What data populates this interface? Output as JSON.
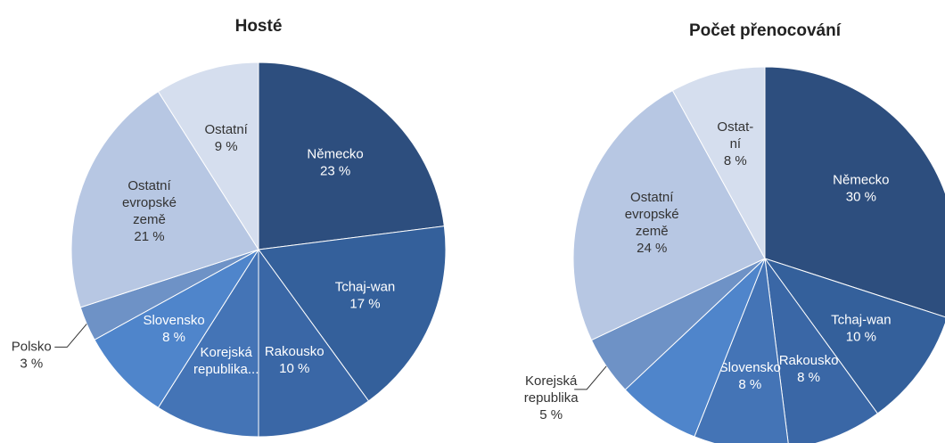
{
  "chart_data": [
    {
      "type": "pie",
      "title": "Hosté",
      "categories": [
        "Německo",
        "Tchaj-wan",
        "Rakousko",
        "Korejská\nrepublika...",
        "Slovensko",
        "Polsko",
        "Ostatní\nevropské\nzemě",
        "Ostatní"
      ],
      "values": [
        23,
        17,
        10,
        9,
        8,
        3,
        21,
        9
      ],
      "value_labels": [
        "23 %",
        "17 %",
        "10 %",
        null,
        "8 %",
        "3 %",
        "21 %",
        "9 %"
      ],
      "colors": [
        "#2d4e7e",
        "#34609b",
        "#3a67a6",
        "#4474b6",
        "#4f85cb",
        "#6e92c6",
        "#b7c7e3",
        "#d5deee"
      ]
    },
    {
      "type": "pie",
      "title": "Počet přenocování",
      "categories": [
        "Německo",
        "Tchaj-wan",
        "Rakousko",
        "Slovensko",
        null,
        "Korejská\nrepublika",
        "Ostatní\nevropské\nzemě",
        "Ostat-\nní"
      ],
      "values": [
        30,
        10,
        8,
        8,
        7,
        5,
        24,
        8
      ],
      "value_labels": [
        "30 %",
        "10 %",
        "8 %",
        "8 %",
        null,
        "5 %",
        "24 %",
        "8 %"
      ],
      "colors": [
        "#2d4e7e",
        "#34609b",
        "#3a67a6",
        "#4474b6",
        "#4f85cb",
        "#6e92c6",
        "#b7c7e3",
        "#d5deee"
      ]
    }
  ]
}
